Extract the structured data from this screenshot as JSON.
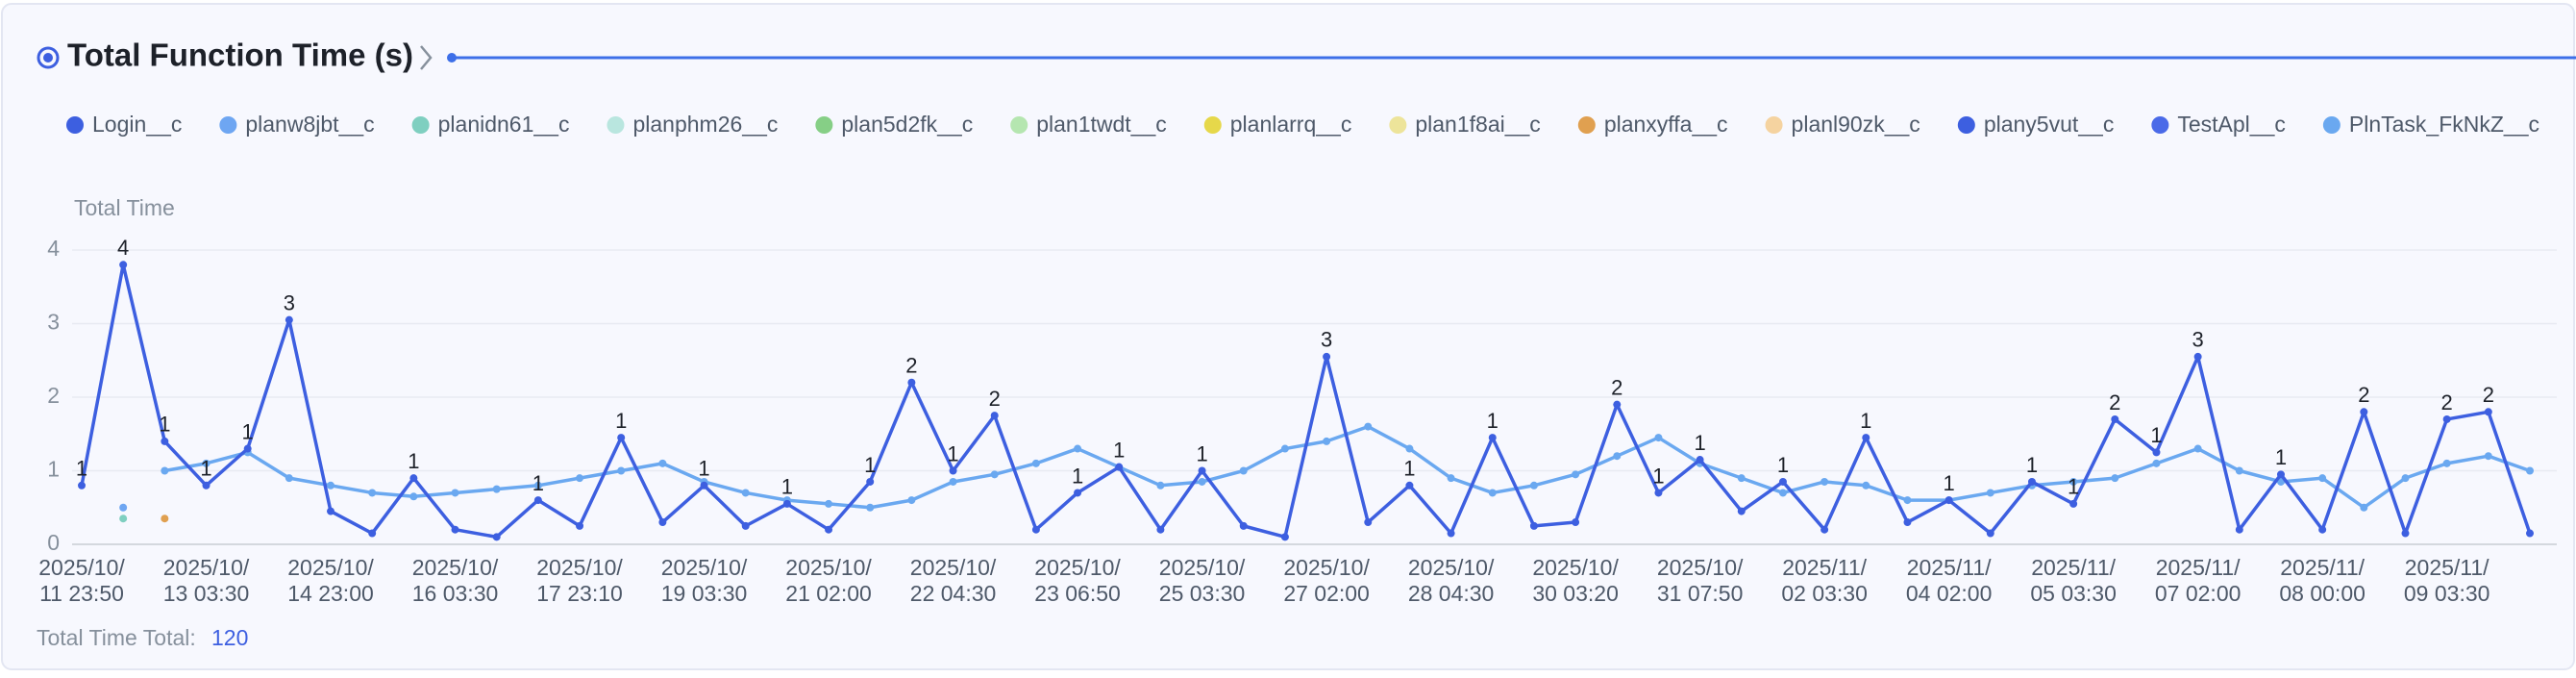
{
  "chart_data": {
    "type": "line",
    "title": "Total Function Time (s)",
    "y_label": "Total Time",
    "total_label": "Total Time Total:",
    "total": 120,
    "categories": [
      "2025/10/11 23:50",
      null,
      null,
      "2025/10/13 03:30",
      null,
      null,
      "2025/10/14 23:00",
      null,
      null,
      "2025/10/16 03:30",
      null,
      null,
      "2025/10/17 23:10",
      null,
      null,
      "2025/10/19 03:30",
      null,
      null,
      "2025/10/21 02:00",
      null,
      null,
      "2025/10/22 04:30",
      null,
      null,
      "2025/10/23 06:50",
      null,
      null,
      "2025/10/25 03:30",
      null,
      null,
      "2025/10/27 02:00",
      null,
      null,
      "2025/10/28 04:30",
      null,
      null,
      "2025/10/30 03:20",
      null,
      null,
      "2025/10/31 07:50",
      null,
      null,
      "2025/11/02 03:30",
      null,
      null,
      "2025/11/04 02:00",
      null,
      null,
      "2025/11/05 03:30",
      null,
      null,
      "2025/11/07 02:00",
      null,
      null,
      "2025/11/08 00:00",
      null,
      null,
      "2025/11/09 03:30",
      null,
      null
    ],
    "ylim": [
      0,
      4
    ],
    "yticks": [
      0,
      1,
      2,
      3,
      4
    ],
    "grid": true,
    "series": [
      {
        "name": "Login__c",
        "color": "#3d5fe0",
        "values": [
          0.8,
          3.8,
          1.4,
          0.8,
          1.3,
          3.05,
          0.45,
          0.15,
          0.9,
          0.2,
          0.1,
          0.6,
          0.25,
          1.45,
          0.3,
          0.8,
          0.25,
          0.55,
          0.2,
          0.85,
          2.2,
          1.0,
          1.75,
          0.2,
          0.7,
          1.05,
          0.2,
          1.0,
          0.25,
          0.1,
          2.55,
          0.3,
          0.8,
          0.15,
          1.45,
          0.25,
          0.3,
          1.9,
          0.7,
          1.15,
          0.45,
          0.85,
          0.2,
          1.45,
          0.3,
          0.6,
          0.15,
          0.85,
          0.55,
          1.7,
          1.25,
          2.55,
          0.2,
          0.95,
          0.2,
          1.8,
          0.15,
          1.7,
          1.8,
          0.15
        ],
        "value_labels": [
          "1",
          "4",
          "1",
          "1",
          "1",
          "3",
          null,
          null,
          "1",
          null,
          null,
          "1",
          null,
          "1",
          null,
          "1",
          null,
          "1",
          null,
          "1",
          "2",
          "1",
          "2",
          null,
          "1",
          "1",
          null,
          "1",
          null,
          null,
          "3",
          null,
          "1",
          null,
          "1",
          null,
          null,
          "2",
          "1",
          "1",
          null,
          "1",
          null,
          "1",
          null,
          "1",
          null,
          "1",
          "1",
          "2",
          "1",
          "3",
          null,
          "1",
          null,
          "2",
          null,
          "2",
          "2",
          null
        ]
      },
      {
        "name": "planw8jbt__c",
        "color": "#6ea6f2",
        "values": [
          null,
          0.5,
          null,
          null,
          null,
          null,
          null,
          null,
          null,
          null,
          null,
          null,
          null,
          null,
          null,
          null,
          null,
          null,
          null,
          null,
          null,
          null,
          null,
          null,
          null,
          null,
          null,
          null,
          null,
          null,
          null,
          null,
          null,
          null,
          null,
          null,
          null,
          null,
          null,
          null,
          null,
          null,
          null,
          null,
          null,
          null,
          null,
          null,
          null,
          null,
          null,
          null,
          null,
          null,
          null,
          null,
          null,
          null,
          null,
          null
        ]
      },
      {
        "name": "planidn61__c",
        "color": "#7fcfc0",
        "values": [
          null,
          0.35,
          null,
          null,
          null,
          null,
          null,
          null,
          null,
          null,
          null,
          null,
          null,
          null,
          null,
          null,
          null,
          null,
          null,
          null,
          null,
          null,
          null,
          null,
          null,
          null,
          null,
          null,
          null,
          null,
          null,
          null,
          null,
          null,
          null,
          null,
          null,
          null,
          null,
          null,
          null,
          null,
          null,
          null,
          null,
          null,
          null,
          null,
          null,
          null,
          null,
          null,
          null,
          null,
          null,
          null,
          null,
          null,
          null,
          null
        ]
      },
      {
        "name": "planphm26__c",
        "color": "#b9e6df",
        "values": [
          null,
          null,
          null,
          null,
          null,
          null,
          null,
          null,
          null,
          null,
          null,
          null,
          null,
          null,
          null,
          null,
          null,
          null,
          null,
          null,
          null,
          null,
          null,
          null,
          null,
          null,
          null,
          null,
          null,
          null,
          null,
          null,
          null,
          null,
          null,
          null,
          null,
          null,
          null,
          null,
          null,
          null,
          null,
          null,
          null,
          null,
          null,
          null,
          null,
          null,
          null,
          null,
          null,
          null,
          null,
          null,
          null,
          null,
          null,
          null
        ]
      },
      {
        "name": "plan5d2fk__c",
        "color": "#86cf86",
        "values": [
          null,
          null,
          null,
          null,
          null,
          null,
          null,
          null,
          null,
          null,
          null,
          null,
          null,
          null,
          null,
          null,
          null,
          null,
          null,
          null,
          null,
          null,
          null,
          null,
          null,
          null,
          null,
          null,
          null,
          null,
          null,
          null,
          null,
          null,
          null,
          null,
          null,
          null,
          null,
          null,
          null,
          null,
          null,
          null,
          null,
          null,
          null,
          null,
          null,
          null,
          null,
          null,
          null,
          null,
          null,
          null,
          null,
          null,
          null,
          null
        ]
      },
      {
        "name": "plan1twdt__c",
        "color": "#b5e6b0",
        "values": [
          null,
          null,
          null,
          null,
          null,
          null,
          null,
          null,
          null,
          null,
          null,
          null,
          null,
          null,
          null,
          null,
          null,
          null,
          null,
          null,
          null,
          null,
          null,
          null,
          null,
          null,
          null,
          null,
          null,
          null,
          null,
          null,
          null,
          null,
          null,
          null,
          null,
          null,
          null,
          null,
          null,
          null,
          null,
          null,
          null,
          null,
          null,
          null,
          null,
          null,
          null,
          null,
          null,
          null,
          null,
          null,
          null,
          null,
          null,
          null
        ]
      },
      {
        "name": "planlarrq__c",
        "color": "#e6d84a",
        "values": [
          null,
          null,
          null,
          null,
          null,
          null,
          null,
          null,
          null,
          null,
          null,
          null,
          null,
          null,
          null,
          null,
          null,
          null,
          null,
          null,
          null,
          null,
          null,
          null,
          null,
          null,
          null,
          null,
          null,
          null,
          null,
          null,
          null,
          null,
          null,
          null,
          null,
          null,
          null,
          null,
          null,
          null,
          null,
          null,
          null,
          null,
          null,
          null,
          null,
          null,
          null,
          null,
          null,
          null,
          null,
          null,
          null,
          null,
          null,
          null
        ]
      },
      {
        "name": "plan1f8ai__c",
        "color": "#ede49a",
        "values": [
          null,
          null,
          null,
          null,
          null,
          null,
          null,
          null,
          null,
          null,
          null,
          null,
          null,
          null,
          null,
          null,
          null,
          null,
          null,
          null,
          null,
          null,
          null,
          null,
          null,
          null,
          null,
          null,
          null,
          null,
          null,
          null,
          null,
          null,
          null,
          null,
          null,
          null,
          null,
          null,
          null,
          null,
          null,
          null,
          null,
          null,
          null,
          null,
          null,
          null,
          null,
          null,
          null,
          null,
          null,
          null,
          null,
          null,
          null,
          null
        ]
      },
      {
        "name": "planxyffa__c",
        "color": "#e0a050",
        "values": [
          null,
          null,
          0.35,
          null,
          null,
          null,
          null,
          null,
          null,
          null,
          null,
          null,
          null,
          null,
          null,
          null,
          null,
          null,
          null,
          null,
          null,
          null,
          null,
          null,
          null,
          null,
          null,
          null,
          null,
          null,
          null,
          null,
          null,
          null,
          null,
          null,
          null,
          null,
          null,
          null,
          null,
          null,
          null,
          null,
          null,
          null,
          null,
          null,
          null,
          null,
          null,
          null,
          null,
          null,
          null,
          null,
          null,
          null,
          null,
          null
        ]
      },
      {
        "name": "planl90zk__c",
        "color": "#f5d3a0",
        "values": [
          null,
          null,
          null,
          null,
          null,
          null,
          null,
          null,
          null,
          null,
          null,
          null,
          null,
          null,
          null,
          null,
          null,
          null,
          null,
          null,
          null,
          null,
          null,
          null,
          null,
          null,
          null,
          null,
          null,
          null,
          null,
          null,
          null,
          null,
          null,
          null,
          null,
          null,
          null,
          null,
          null,
          null,
          null,
          null,
          null,
          null,
          null,
          null,
          null,
          null,
          null,
          null,
          null,
          null,
          null,
          null,
          null,
          null,
          null,
          null
        ]
      },
      {
        "name": "plany5vut__c",
        "color": "#3d5fe0",
        "values": [
          null,
          null,
          null,
          null,
          null,
          null,
          null,
          null,
          null,
          null,
          null,
          null,
          null,
          null,
          null,
          null,
          null,
          null,
          null,
          null,
          null,
          null,
          null,
          null,
          null,
          null,
          null,
          null,
          null,
          null,
          null,
          null,
          null,
          null,
          null,
          null,
          null,
          null,
          null,
          null,
          null,
          null,
          null,
          null,
          null,
          null,
          null,
          null,
          null,
          null,
          null,
          null,
          null,
          null,
          null,
          null,
          null,
          null,
          null,
          null
        ]
      },
      {
        "name": "TestApl__c",
        "color": "#4a6ae8",
        "values": [
          null,
          null,
          null,
          null,
          null,
          null,
          null,
          null,
          null,
          null,
          null,
          null,
          null,
          null,
          null,
          null,
          null,
          null,
          null,
          null,
          null,
          null,
          null,
          null,
          null,
          null,
          null,
          null,
          null,
          null,
          null,
          null,
          null,
          null,
          null,
          null,
          null,
          null,
          null,
          null,
          null,
          null,
          null,
          null,
          null,
          null,
          null,
          null,
          null,
          null,
          null,
          null,
          null,
          null,
          null,
          null,
          null,
          null,
          null,
          null
        ]
      },
      {
        "name": "PlnTask_FkNkZ__c",
        "color": "#6aa8f0",
        "values": [
          null,
          null,
          1.0,
          1.1,
          1.25,
          0.9,
          0.8,
          0.7,
          0.65,
          0.7,
          0.75,
          0.8,
          0.9,
          1.0,
          1.1,
          0.85,
          0.7,
          0.6,
          0.55,
          0.5,
          0.6,
          0.85,
          0.95,
          1.1,
          1.3,
          1.05,
          0.8,
          0.85,
          1.0,
          1.3,
          1.4,
          1.6,
          1.3,
          0.9,
          0.7,
          0.8,
          0.95,
          1.2,
          1.45,
          1.1,
          0.9,
          0.7,
          0.85,
          0.8,
          0.6,
          0.6,
          0.7,
          0.8,
          0.85,
          0.9,
          1.1,
          1.3,
          1.0,
          0.85,
          0.9,
          0.5,
          0.9,
          1.1,
          1.2,
          1.0
        ]
      }
    ]
  }
}
